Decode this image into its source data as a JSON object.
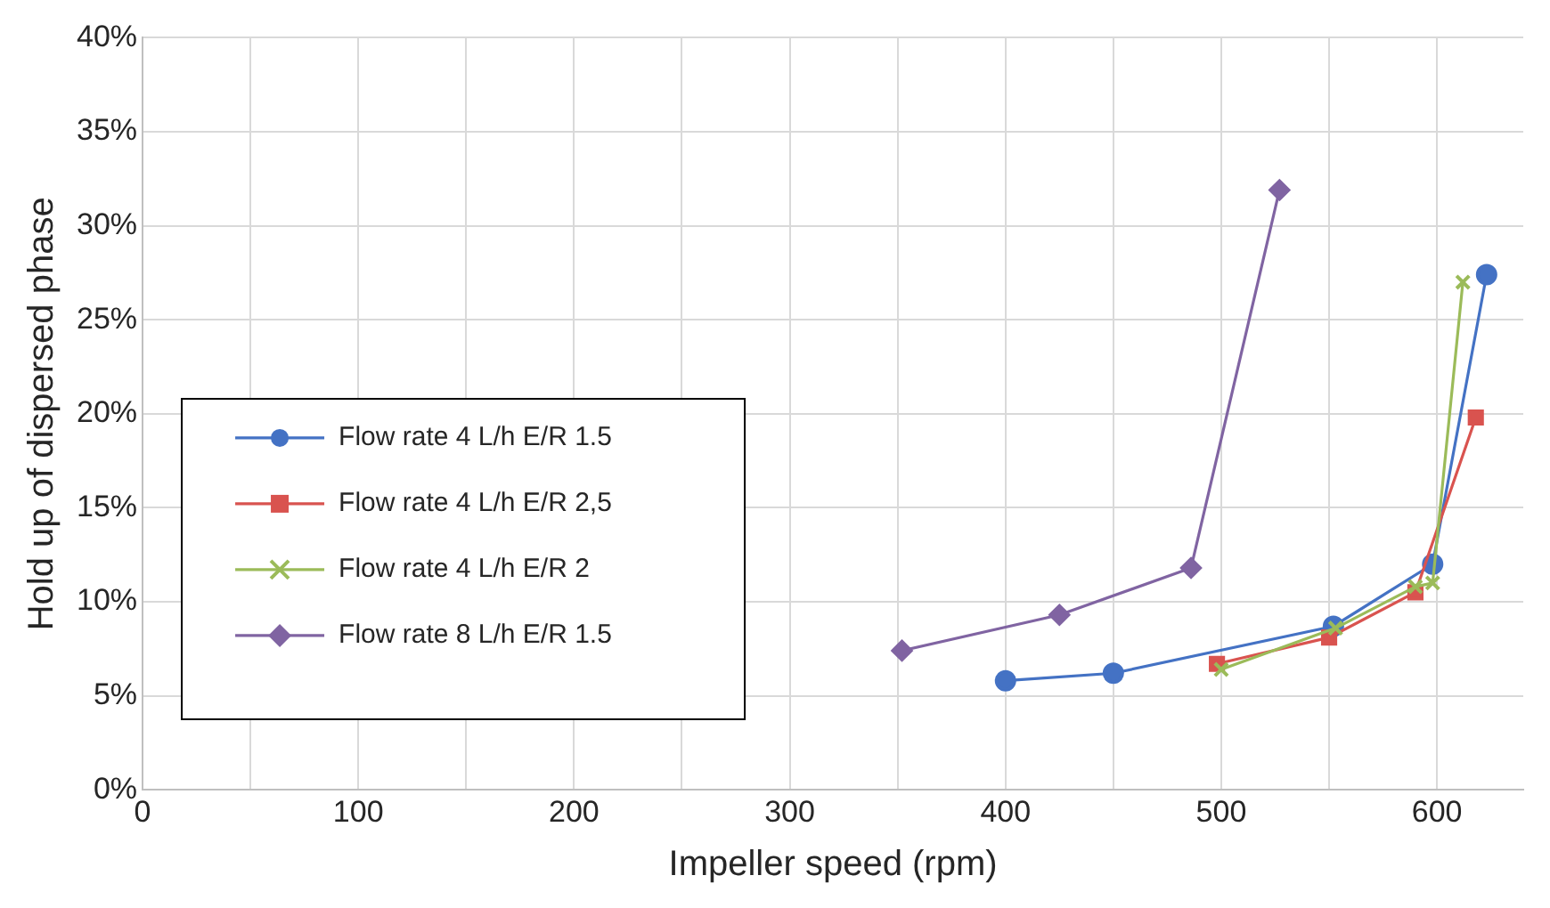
{
  "chart_data": {
    "type": "line",
    "xlabel": "Impeller speed (rpm)",
    "ylabel": "Hold up of dispersed phase",
    "xlim": [
      0,
      640
    ],
    "xticks": [
      0,
      {
        "value": 50,
        "label": null
      },
      100,
      {
        "value": 150,
        "label": null
      },
      200,
      {
        "value": 250,
        "label": null
      },
      300,
      {
        "value": 350,
        "label": null
      },
      400,
      {
        "value": 450,
        "label": null
      },
      500,
      {
        "value": 550,
        "label": null
      },
      600
    ],
    "ylim": [
      0,
      40
    ],
    "yticks": [
      {
        "value": 0,
        "label": "0%"
      },
      {
        "value": 5,
        "label": "5%"
      },
      {
        "value": 10,
        "label": "10%"
      },
      {
        "value": 15,
        "label": "15%"
      },
      {
        "value": 20,
        "label": "20%"
      },
      {
        "value": 25,
        "label": "25%"
      },
      {
        "value": 30,
        "label": "30%"
      },
      {
        "value": 35,
        "label": "35%"
      },
      {
        "value": 40,
        "label": "40%"
      }
    ],
    "grid": true,
    "legend": "left",
    "series": [
      {
        "name": "Flow rate 4 L/h E/R 1.5",
        "color": "#4472c4",
        "marker": "circle",
        "x": [
          400,
          450,
          552,
          598,
          623
        ],
        "values": [
          5.8,
          6.2,
          8.7,
          12,
          27.4
        ]
      },
      {
        "name": "Flow rate 4 L/h E/R 2,5",
        "color": "#d9534f",
        "marker": "square",
        "x": [
          498,
          550,
          590,
          618
        ],
        "values": [
          6.7,
          8.1,
          10.5,
          19.8
        ]
      },
      {
        "name": "Flow rate 4 L/h E/R 2",
        "color": "#9bbb59",
        "marker": "cross",
        "x": [
          500,
          553,
          590,
          598,
          612
        ],
        "values": [
          6.4,
          8.6,
          10.8,
          11,
          27
        ]
      },
      {
        "name": "Flow rate 8 L/h E/R 1.5",
        "color": "#8064a2",
        "marker": "diamond",
        "x": [
          352,
          425,
          486,
          527
        ],
        "values": [
          7.4,
          9.3,
          11.8,
          31.9
        ]
      }
    ]
  }
}
